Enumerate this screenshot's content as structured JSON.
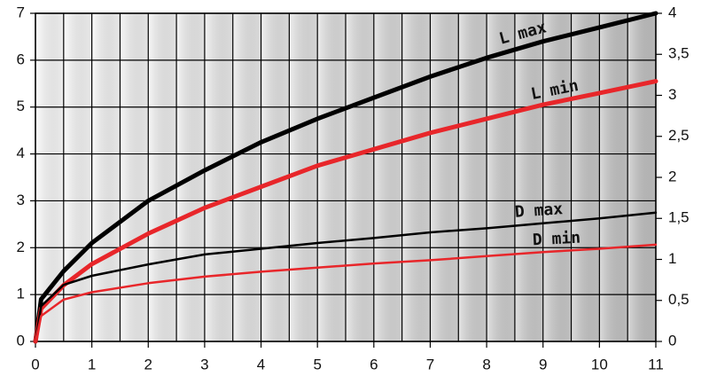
{
  "chart_data": {
    "type": "line",
    "x": [
      0,
      0.1,
      0.5,
      1,
      2,
      3,
      4,
      5,
      6,
      7,
      8,
      9,
      10,
      11
    ],
    "series": [
      {
        "name": "L max",
        "color": "#000000",
        "axis": "y",
        "values": [
          0,
          0.9,
          1.5,
          2.1,
          3.0,
          3.65,
          4.25,
          4.75,
          5.2,
          5.65,
          6.05,
          6.4,
          6.7,
          7.0
        ]
      },
      {
        "name": "L min",
        "color": "#e8262a",
        "axis": "y",
        "values": [
          0,
          0.7,
          1.2,
          1.65,
          2.3,
          2.85,
          3.3,
          3.75,
          4.1,
          4.45,
          4.75,
          5.05,
          5.3,
          5.55
        ]
      },
      {
        "name": "D max",
        "color": "#000000",
        "axis": "y2",
        "values": [
          0,
          0.43,
          0.69,
          0.8,
          0.94,
          1.06,
          1.13,
          1.2,
          1.26,
          1.33,
          1.38,
          1.44,
          1.5,
          1.57
        ]
      },
      {
        "name": "D min",
        "color": "#e8262a",
        "axis": "y2",
        "values": [
          0,
          0.31,
          0.51,
          0.6,
          0.71,
          0.79,
          0.85,
          0.9,
          0.95,
          0.99,
          1.04,
          1.09,
          1.13,
          1.18
        ]
      }
    ],
    "xlim": [
      0,
      11
    ],
    "xticks": [
      0,
      1,
      2,
      3,
      4,
      5,
      6,
      7,
      8,
      9,
      10,
      11
    ],
    "x_minor_grid": [
      0.5,
      1.5,
      2.5,
      3.5,
      4.5,
      5.5,
      6.5,
      7.5,
      8.5,
      9.5,
      10.5
    ],
    "ylim": [
      0,
      7
    ],
    "yticks": [
      0,
      1,
      2,
      3,
      4,
      5,
      6,
      7
    ],
    "y2lim": [
      0,
      4
    ],
    "y2ticks": [
      0,
      {
        "value": 0.5,
        "label": "0,5"
      },
      1,
      {
        "value": 1.5,
        "label": "1,5"
      },
      2,
      {
        "value": 2.5,
        "label": "2,5"
      },
      3,
      {
        "value": 3.5,
        "label": "3,5"
      },
      4
    ],
    "grid": true
  }
}
